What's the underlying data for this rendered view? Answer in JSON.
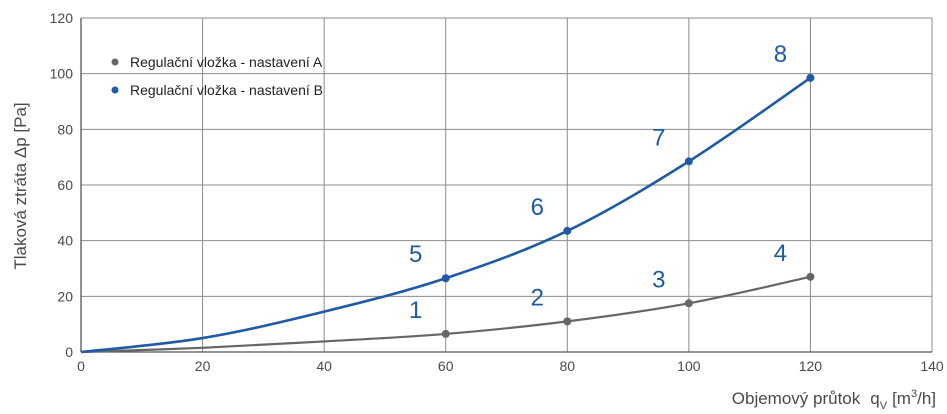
{
  "chart_data": {
    "type": "line",
    "xlabel": "Objemový průtok",
    "xlabel_symbol": "q",
    "xlabel_subscript": "V",
    "xlabel_unit_open": "[m",
    "xlabel_unit_sup": "3",
    "xlabel_unit_close": "/h]",
    "ylabel": "Tlaková ztráta  Δp [Pa]",
    "xlim": [
      0,
      140
    ],
    "ylim": [
      0,
      120
    ],
    "x_ticks": [
      "0",
      "20",
      "40",
      "60",
      "80",
      "100",
      "120",
      "140"
    ],
    "y_ticks": [
      "0",
      "20",
      "40",
      "60",
      "80",
      "100",
      "120"
    ],
    "grid": true,
    "legend_position": "top-left",
    "series": [
      {
        "name": "Regulační vložka - nastavení A",
        "color": "#666666",
        "curve": [
          [
            0,
            0
          ],
          [
            20,
            1.5
          ],
          [
            40,
            3.8
          ],
          [
            60,
            6.5
          ],
          [
            80,
            11
          ],
          [
            100,
            17.5
          ],
          [
            120,
            27
          ]
        ],
        "points": [
          {
            "x": 60,
            "y": 6.5,
            "label": "1"
          },
          {
            "x": 80,
            "y": 11,
            "label": "2"
          },
          {
            "x": 100,
            "y": 17.5,
            "label": "3"
          },
          {
            "x": 120,
            "y": 27,
            "label": "4"
          }
        ]
      },
      {
        "name": "Regulační vložka - nastavení B",
        "color": "#1f5aa6",
        "curve": [
          [
            0,
            0
          ],
          [
            20,
            5
          ],
          [
            40,
            14.5
          ],
          [
            60,
            26.5
          ],
          [
            80,
            43.5
          ],
          [
            100,
            68.5
          ],
          [
            120,
            98.5
          ]
        ],
        "points": [
          {
            "x": 60,
            "y": 26.5,
            "label": "5"
          },
          {
            "x": 80,
            "y": 43.5,
            "label": "6"
          },
          {
            "x": 100,
            "y": 68.5,
            "label": "7"
          },
          {
            "x": 120,
            "y": 98.5,
            "label": "8"
          }
        ]
      }
    ]
  }
}
